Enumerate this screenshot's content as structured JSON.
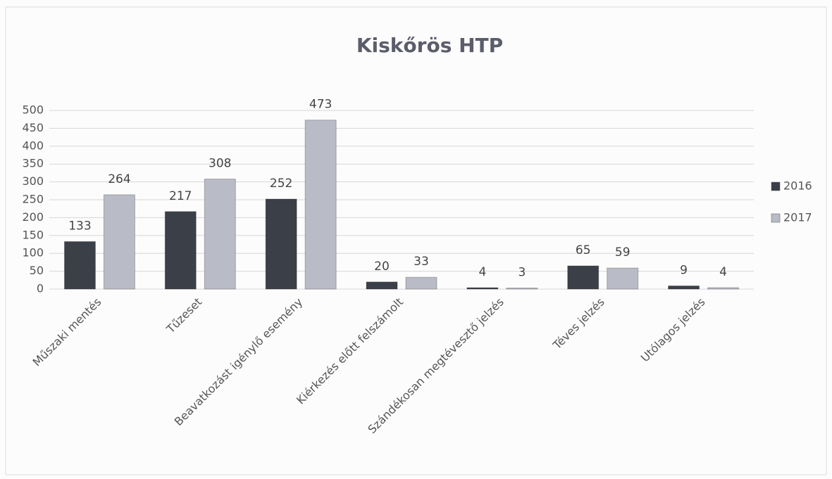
{
  "chart_data": {
    "type": "bar",
    "title": "Kiskőrös HTP",
    "categories": [
      "Műszaki mentés",
      "Tűzeset",
      "Beavatkozást igénylő esemény",
      "Kiérkezés előtt felszámolt",
      "Szándékosan megtévesztő jelzés",
      "Téves jelzés",
      "Utólagos jelzés"
    ],
    "series": [
      {
        "name": "2016",
        "color": "#3b3f48",
        "values": [
          133,
          217,
          252,
          20,
          4,
          65,
          9
        ]
      },
      {
        "name": "2017",
        "color": "#b9bbc6",
        "values": [
          264,
          308,
          473,
          33,
          3,
          59,
          4
        ]
      }
    ],
    "ylim": [
      0,
      500
    ],
    "yticks": [
      0,
      50,
      100,
      150,
      200,
      250,
      300,
      350,
      400,
      450,
      500
    ],
    "grid": true,
    "legend": "right"
  }
}
